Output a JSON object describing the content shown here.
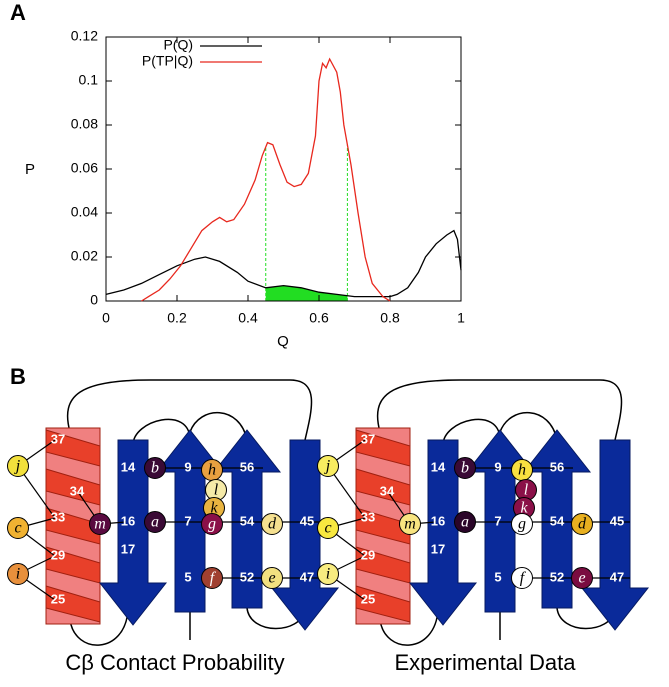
{
  "panels": [
    "A",
    "B"
  ],
  "chart_data": {
    "type": "line",
    "xlabel": "Q",
    "ylabel": "P",
    "xlim": [
      0,
      1
    ],
    "ylim": [
      0,
      0.12
    ],
    "xticks": [
      0,
      0.2,
      0.4,
      0.6,
      0.8,
      1
    ],
    "yticks": [
      0,
      0.02,
      0.04,
      0.06,
      0.08,
      0.1,
      0.12
    ],
    "legend": "upper left",
    "series": [
      {
        "name": "P(Q)",
        "color": "#000000",
        "x": [
          0,
          0.05,
          0.1,
          0.15,
          0.2,
          0.25,
          0.28,
          0.32,
          0.37,
          0.4,
          0.45,
          0.5,
          0.55,
          0.6,
          0.65,
          0.7,
          0.75,
          0.8,
          0.82,
          0.85,
          0.88,
          0.9,
          0.93,
          0.96,
          0.98,
          0.99,
          1
        ],
        "values": [
          0.003,
          0.005,
          0.008,
          0.012,
          0.016,
          0.019,
          0.02,
          0.018,
          0.013,
          0.009,
          0.006,
          0.007,
          0.006,
          0.004,
          0.003,
          0.002,
          0.002,
          0.002,
          0.003,
          0.006,
          0.013,
          0.02,
          0.026,
          0.03,
          0.032,
          0.028,
          0.014
        ]
      },
      {
        "name": "P(TP|Q)",
        "color": "#e8281e",
        "x": [
          0.1,
          0.12,
          0.15,
          0.18,
          0.21,
          0.24,
          0.27,
          0.3,
          0.32,
          0.34,
          0.36,
          0.39,
          0.42,
          0.44,
          0.455,
          0.47,
          0.49,
          0.51,
          0.53,
          0.55,
          0.57,
          0.59,
          0.6,
          0.61,
          0.62,
          0.63,
          0.65,
          0.66,
          0.67,
          0.69,
          0.71,
          0.73,
          0.75,
          0.78,
          0.8
        ],
        "values": [
          0,
          0.002,
          0.005,
          0.01,
          0.016,
          0.024,
          0.032,
          0.036,
          0.038,
          0.036,
          0.037,
          0.044,
          0.055,
          0.066,
          0.072,
          0.071,
          0.062,
          0.054,
          0.052,
          0.053,
          0.058,
          0.075,
          0.1,
          0.108,
          0.106,
          0.11,
          0.104,
          0.095,
          0.08,
          0.062,
          0.04,
          0.02,
          0.008,
          0.002,
          0
        ]
      }
    ],
    "highlight": {
      "x": [
        0.45,
        0.68
      ],
      "color": "#22dd22"
    }
  },
  "diagrams": [
    {
      "caption": "Cβ Contact Probability",
      "helix": [
        37,
        34,
        33,
        29,
        25
      ],
      "strands": [
        [
          14,
          16,
          17
        ],
        [
          9,
          7,
          5
        ],
        [
          56,
          54,
          52
        ],
        [
          45,
          47
        ]
      ],
      "contacts": [
        {
          "label": "j",
          "color": "#f2e03c"
        },
        {
          "label": "c",
          "color": "#f0b232"
        },
        {
          "label": "i",
          "color": "#e8903c"
        },
        {
          "label": "m",
          "color": "#5a0a40"
        },
        {
          "label": "b",
          "color": "#3a0a35"
        },
        {
          "label": "a",
          "color": "#3a0a35"
        },
        {
          "label": "h",
          "color": "#e8a040"
        },
        {
          "label": "l",
          "color": "#f5eaa8"
        },
        {
          "label": "k",
          "color": "#e8b440"
        },
        {
          "label": "g",
          "color": "#8a1048"
        },
        {
          "label": "f",
          "color": "#a04030"
        },
        {
          "label": "d",
          "color": "#f5e090"
        },
        {
          "label": "e",
          "color": "#f2e080"
        }
      ]
    },
    {
      "caption": "Experimental Data",
      "helix": [
        37,
        34,
        33,
        29,
        25
      ],
      "strands": [
        [
          14,
          16,
          17
        ],
        [
          9,
          7,
          5
        ],
        [
          56,
          54,
          52
        ],
        [
          45,
          47
        ]
      ],
      "contacts": [
        {
          "label": "j",
          "color": "#f8ec60"
        },
        {
          "label": "c",
          "color": "#f8e840"
        },
        {
          "label": "i",
          "color": "#f8ec80"
        },
        {
          "label": "m",
          "color": "#f8e480"
        },
        {
          "label": "b",
          "color": "#3a0a35"
        },
        {
          "label": "a",
          "color": "#2a0528"
        },
        {
          "label": "h",
          "color": "#f8e040"
        },
        {
          "label": "l",
          "color": "#8a1048"
        },
        {
          "label": "k",
          "color": "#8a1048"
        },
        {
          "label": "g",
          "color": "#ffffff"
        },
        {
          "label": "f",
          "color": "#ffffff"
        },
        {
          "label": "d",
          "color": "#e8b020"
        },
        {
          "label": "e",
          "color": "#7a0c40"
        }
      ]
    }
  ]
}
